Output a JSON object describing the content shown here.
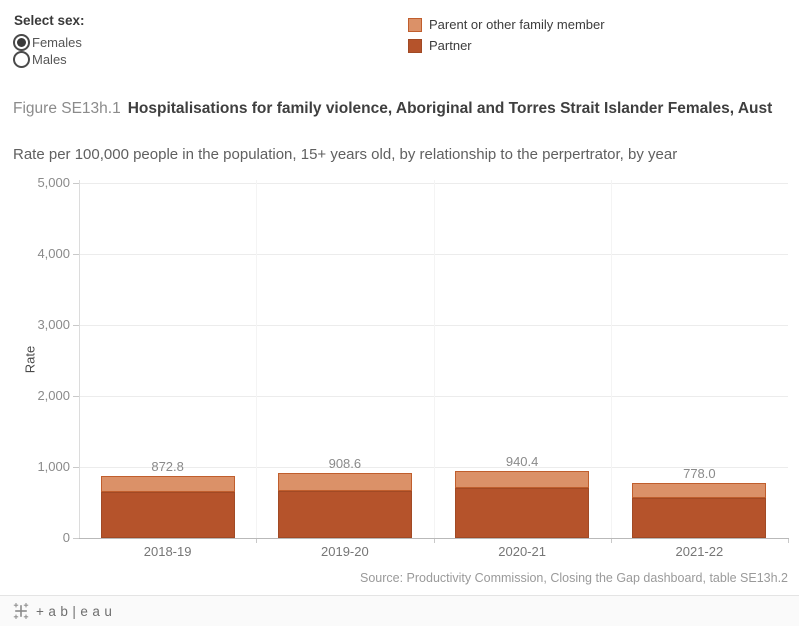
{
  "controls": {
    "label": "Select sex:",
    "options": [
      {
        "label": "Females",
        "selected": true
      },
      {
        "label": "Males",
        "selected": false
      }
    ]
  },
  "legend": {
    "items": [
      {
        "label": "Parent or other family member",
        "color": "#DB9168",
        "border": "#C05E2D"
      },
      {
        "label": "Partner",
        "color": "#B5532B",
        "border": "#A14A25"
      }
    ]
  },
  "header": {
    "figure_label": "Figure SE13h.1",
    "title_bold": "Hospitalisations for family violence, Aboriginal and Torres Strait Islander Females, Aust",
    "subtitle": "Rate per 100,000 people in the population, 15+ years old, by relationship to the perpertrator, by year"
  },
  "chart_data": {
    "type": "bar",
    "stacked": true,
    "categories": [
      "2018-19",
      "2019-20",
      "2020-21",
      "2021-22"
    ],
    "series": [
      {
        "name": "Partner",
        "color": "#B5532B",
        "border_color": "#A14A25",
        "values": [
          645,
          660,
          700,
          565
        ]
      },
      {
        "name": "Parent or other family member",
        "color": "#DB9168",
        "border_color": "#C05E2D",
        "values": [
          227.8,
          248.6,
          240.4,
          213.0
        ]
      }
    ],
    "totals": [
      872.8,
      908.6,
      940.4,
      778.0
    ],
    "totals_labels": [
      "872.8",
      "908.6",
      "940.4",
      "778.0"
    ],
    "ylabel": "Rate",
    "ylim": [
      0,
      5000
    ],
    "yticks": [
      0,
      1000,
      2000,
      3000,
      4000,
      5000
    ],
    "ytick_labels": [
      "0",
      "1,000",
      "2,000",
      "3,000",
      "4,000",
      "5,000"
    ],
    "grid": true,
    "legend_position": "top"
  },
  "source": "Source: Productivity Commission, Closing the Gap dashboard, table SE13h.2",
  "footer": {
    "wordmark": "+ab|eau"
  }
}
